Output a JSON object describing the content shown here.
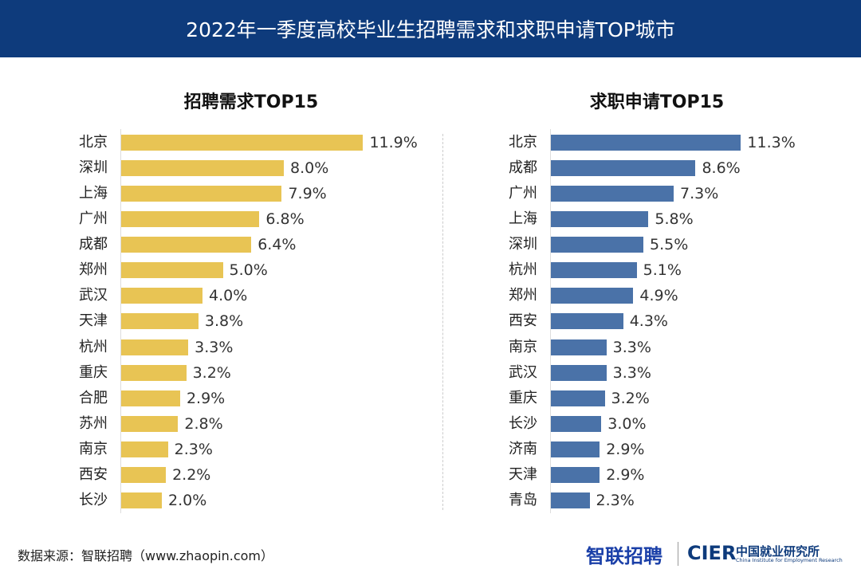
{
  "title": "2022年一季度高校毕业生招聘需求和求职申请TOP城市",
  "source": "数据来源：智联招聘（www.zhaopin.com）",
  "logos": {
    "zhaopin": "智联招聘",
    "cier": "CIER",
    "cier_cn": "中国就业研究所",
    "cier_en": "China Institute for Employment Research"
  },
  "chart_data": [
    {
      "type": "bar",
      "orientation": "horizontal",
      "title": "招聘需求TOP15",
      "color": "#e8c454",
      "unit": "%",
      "categories": [
        "北京",
        "深圳",
        "上海",
        "广州",
        "成都",
        "郑州",
        "武汉",
        "天津",
        "杭州",
        "重庆",
        "合肥",
        "苏州",
        "南京",
        "西安",
        "长沙"
      ],
      "values": [
        11.9,
        8.0,
        7.9,
        6.8,
        6.4,
        5.0,
        4.0,
        3.8,
        3.3,
        3.2,
        2.9,
        2.8,
        2.3,
        2.2,
        2.0
      ],
      "labels": [
        "11.9%",
        "8.0%",
        "7.9%",
        "6.8%",
        "6.4%",
        "5.0%",
        "4.0%",
        "3.8%",
        "3.3%",
        "3.2%",
        "2.9%",
        "2.8%",
        "2.3%",
        "2.2%",
        "2.0%"
      ]
    },
    {
      "type": "bar",
      "orientation": "horizontal",
      "title": "求职申请TOP15",
      "color": "#4a72a8",
      "unit": "%",
      "categories": [
        "北京",
        "成都",
        "广州",
        "上海",
        "深圳",
        "杭州",
        "郑州",
        "西安",
        "南京",
        "武汉",
        "重庆",
        "长沙",
        "济南",
        "天津",
        "青岛"
      ],
      "values": [
        11.3,
        8.6,
        7.3,
        5.8,
        5.5,
        5.1,
        4.9,
        4.3,
        3.3,
        3.3,
        3.2,
        3.0,
        2.9,
        2.9,
        2.3
      ],
      "labels": [
        "11.3%",
        "8.6%",
        "7.3%",
        "5.8%",
        "5.5%",
        "5.1%",
        "4.9%",
        "4.3%",
        "3.3%",
        "3.3%",
        "3.2%",
        "3.0%",
        "2.9%",
        "2.9%",
        "2.3%"
      ]
    }
  ]
}
